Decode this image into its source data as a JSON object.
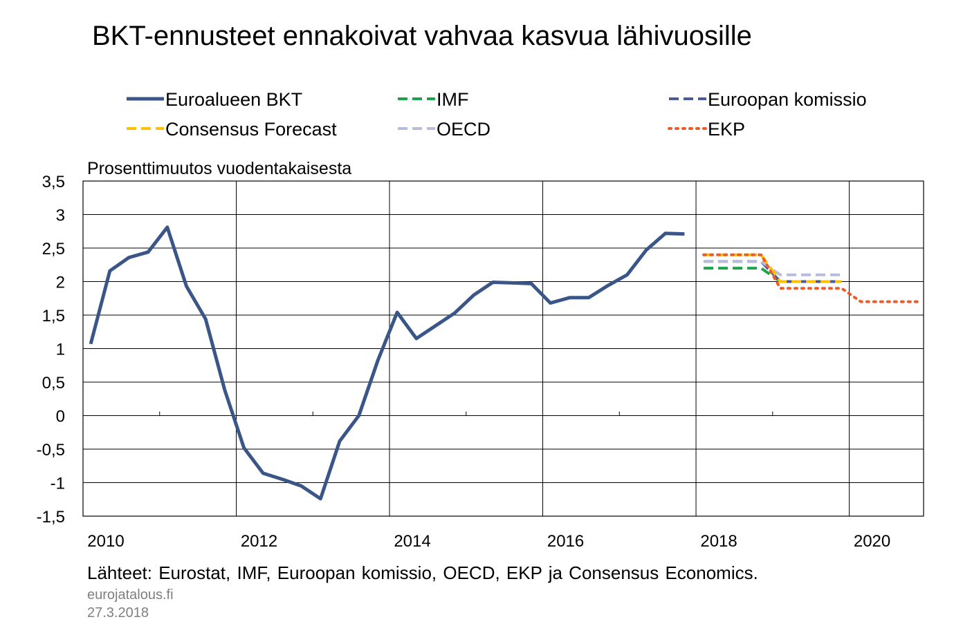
{
  "chart_data": {
    "type": "line",
    "title": "BKT-ennusteet ennakoivat vahvaa kasvua lähivuosille",
    "ylabel": "Prosenttimuutos vuodentakaisesta",
    "xlabel": "",
    "ylim": [
      -1.5,
      3.5
    ],
    "xlim": [
      2010.0,
      2020.97
    ],
    "yticks": [
      -1.5,
      -1,
      -0.5,
      0,
      0.5,
      1,
      1.5,
      2,
      2.5,
      3,
      3.5
    ],
    "ytick_labels": [
      "-1,5",
      "-1",
      "-0,5",
      "0",
      "0,5",
      "1",
      "1,5",
      "2",
      "2,5",
      "3",
      "3,5"
    ],
    "xtick_labels": [
      "2010",
      "2012",
      "2014",
      "2016",
      "2018",
      "2020"
    ],
    "xticks": [
      2010,
      2012,
      2014,
      2016,
      2018,
      2020
    ],
    "grid": true,
    "legend_position": "top",
    "source": "Lähteet: Eurostat, IMF, Euroopan komissio, OECD, EKP ja Consensus Economics.",
    "site": "eurojatalous.fi",
    "date": "27.3.2018",
    "series": [
      {
        "name": "Euroalueen BKT",
        "color": "#3a5688",
        "style": "solid",
        "points": [
          [
            2010.1,
            1.07
          ],
          [
            2010.35,
            2.16
          ],
          [
            2010.6,
            2.36
          ],
          [
            2010.85,
            2.44
          ],
          [
            2011.1,
            2.81
          ],
          [
            2011.35,
            1.93
          ],
          [
            2011.6,
            1.44
          ],
          [
            2011.85,
            0.38
          ],
          [
            2012.1,
            -0.48
          ],
          [
            2012.35,
            -0.86
          ],
          [
            2012.6,
            -0.95
          ],
          [
            2012.85,
            -1.05
          ],
          [
            2013.1,
            -1.24
          ],
          [
            2013.35,
            -0.38
          ],
          [
            2013.6,
            0.0
          ],
          [
            2013.85,
            0.83
          ],
          [
            2014.1,
            1.54
          ],
          [
            2014.35,
            1.15
          ],
          [
            2014.6,
            1.34
          ],
          [
            2014.85,
            1.53
          ],
          [
            2015.1,
            1.8
          ],
          [
            2015.35,
            1.99
          ],
          [
            2015.6,
            1.98
          ],
          [
            2015.85,
            1.97
          ],
          [
            2016.1,
            1.68
          ],
          [
            2016.35,
            1.76
          ],
          [
            2016.6,
            1.76
          ],
          [
            2016.85,
            1.94
          ],
          [
            2017.1,
            2.1
          ],
          [
            2017.35,
            2.47
          ],
          [
            2017.6,
            2.72
          ],
          [
            2017.85,
            2.71
          ]
        ]
      },
      {
        "name": "IMF",
        "color": "#1aa44a",
        "style": "dashed",
        "points": [
          [
            2018.1,
            2.2
          ],
          [
            2018.85,
            2.2
          ],
          [
            2019.1,
            2.0
          ],
          [
            2019.9,
            2.0
          ]
        ]
      },
      {
        "name": "Euroopan komissio",
        "color": "#4a5a9a",
        "style": "dashed",
        "points": [
          [
            2018.1,
            2.3
          ],
          [
            2018.85,
            2.3
          ],
          [
            2019.1,
            2.0
          ],
          [
            2019.9,
            2.0
          ]
        ]
      },
      {
        "name": "Consensus Forecast",
        "color": "#ffc000",
        "style": "dashed",
        "points": [
          [
            2018.1,
            2.4
          ],
          [
            2018.85,
            2.4
          ],
          [
            2019.1,
            2.0
          ],
          [
            2019.9,
            2.0
          ]
        ]
      },
      {
        "name": "OECD",
        "color": "#b8bcdc",
        "style": "dashed",
        "points": [
          [
            2018.1,
            2.3
          ],
          [
            2018.85,
            2.3
          ],
          [
            2019.1,
            2.1
          ],
          [
            2019.9,
            2.1
          ]
        ]
      },
      {
        "name": "EKP",
        "color": "#f05a28",
        "style": "dotted",
        "points": [
          [
            2018.1,
            2.4
          ],
          [
            2018.85,
            2.4
          ],
          [
            2019.1,
            1.9
          ],
          [
            2019.9,
            1.9
          ],
          [
            2020.15,
            1.7
          ],
          [
            2020.95,
            1.7
          ]
        ]
      }
    ]
  }
}
